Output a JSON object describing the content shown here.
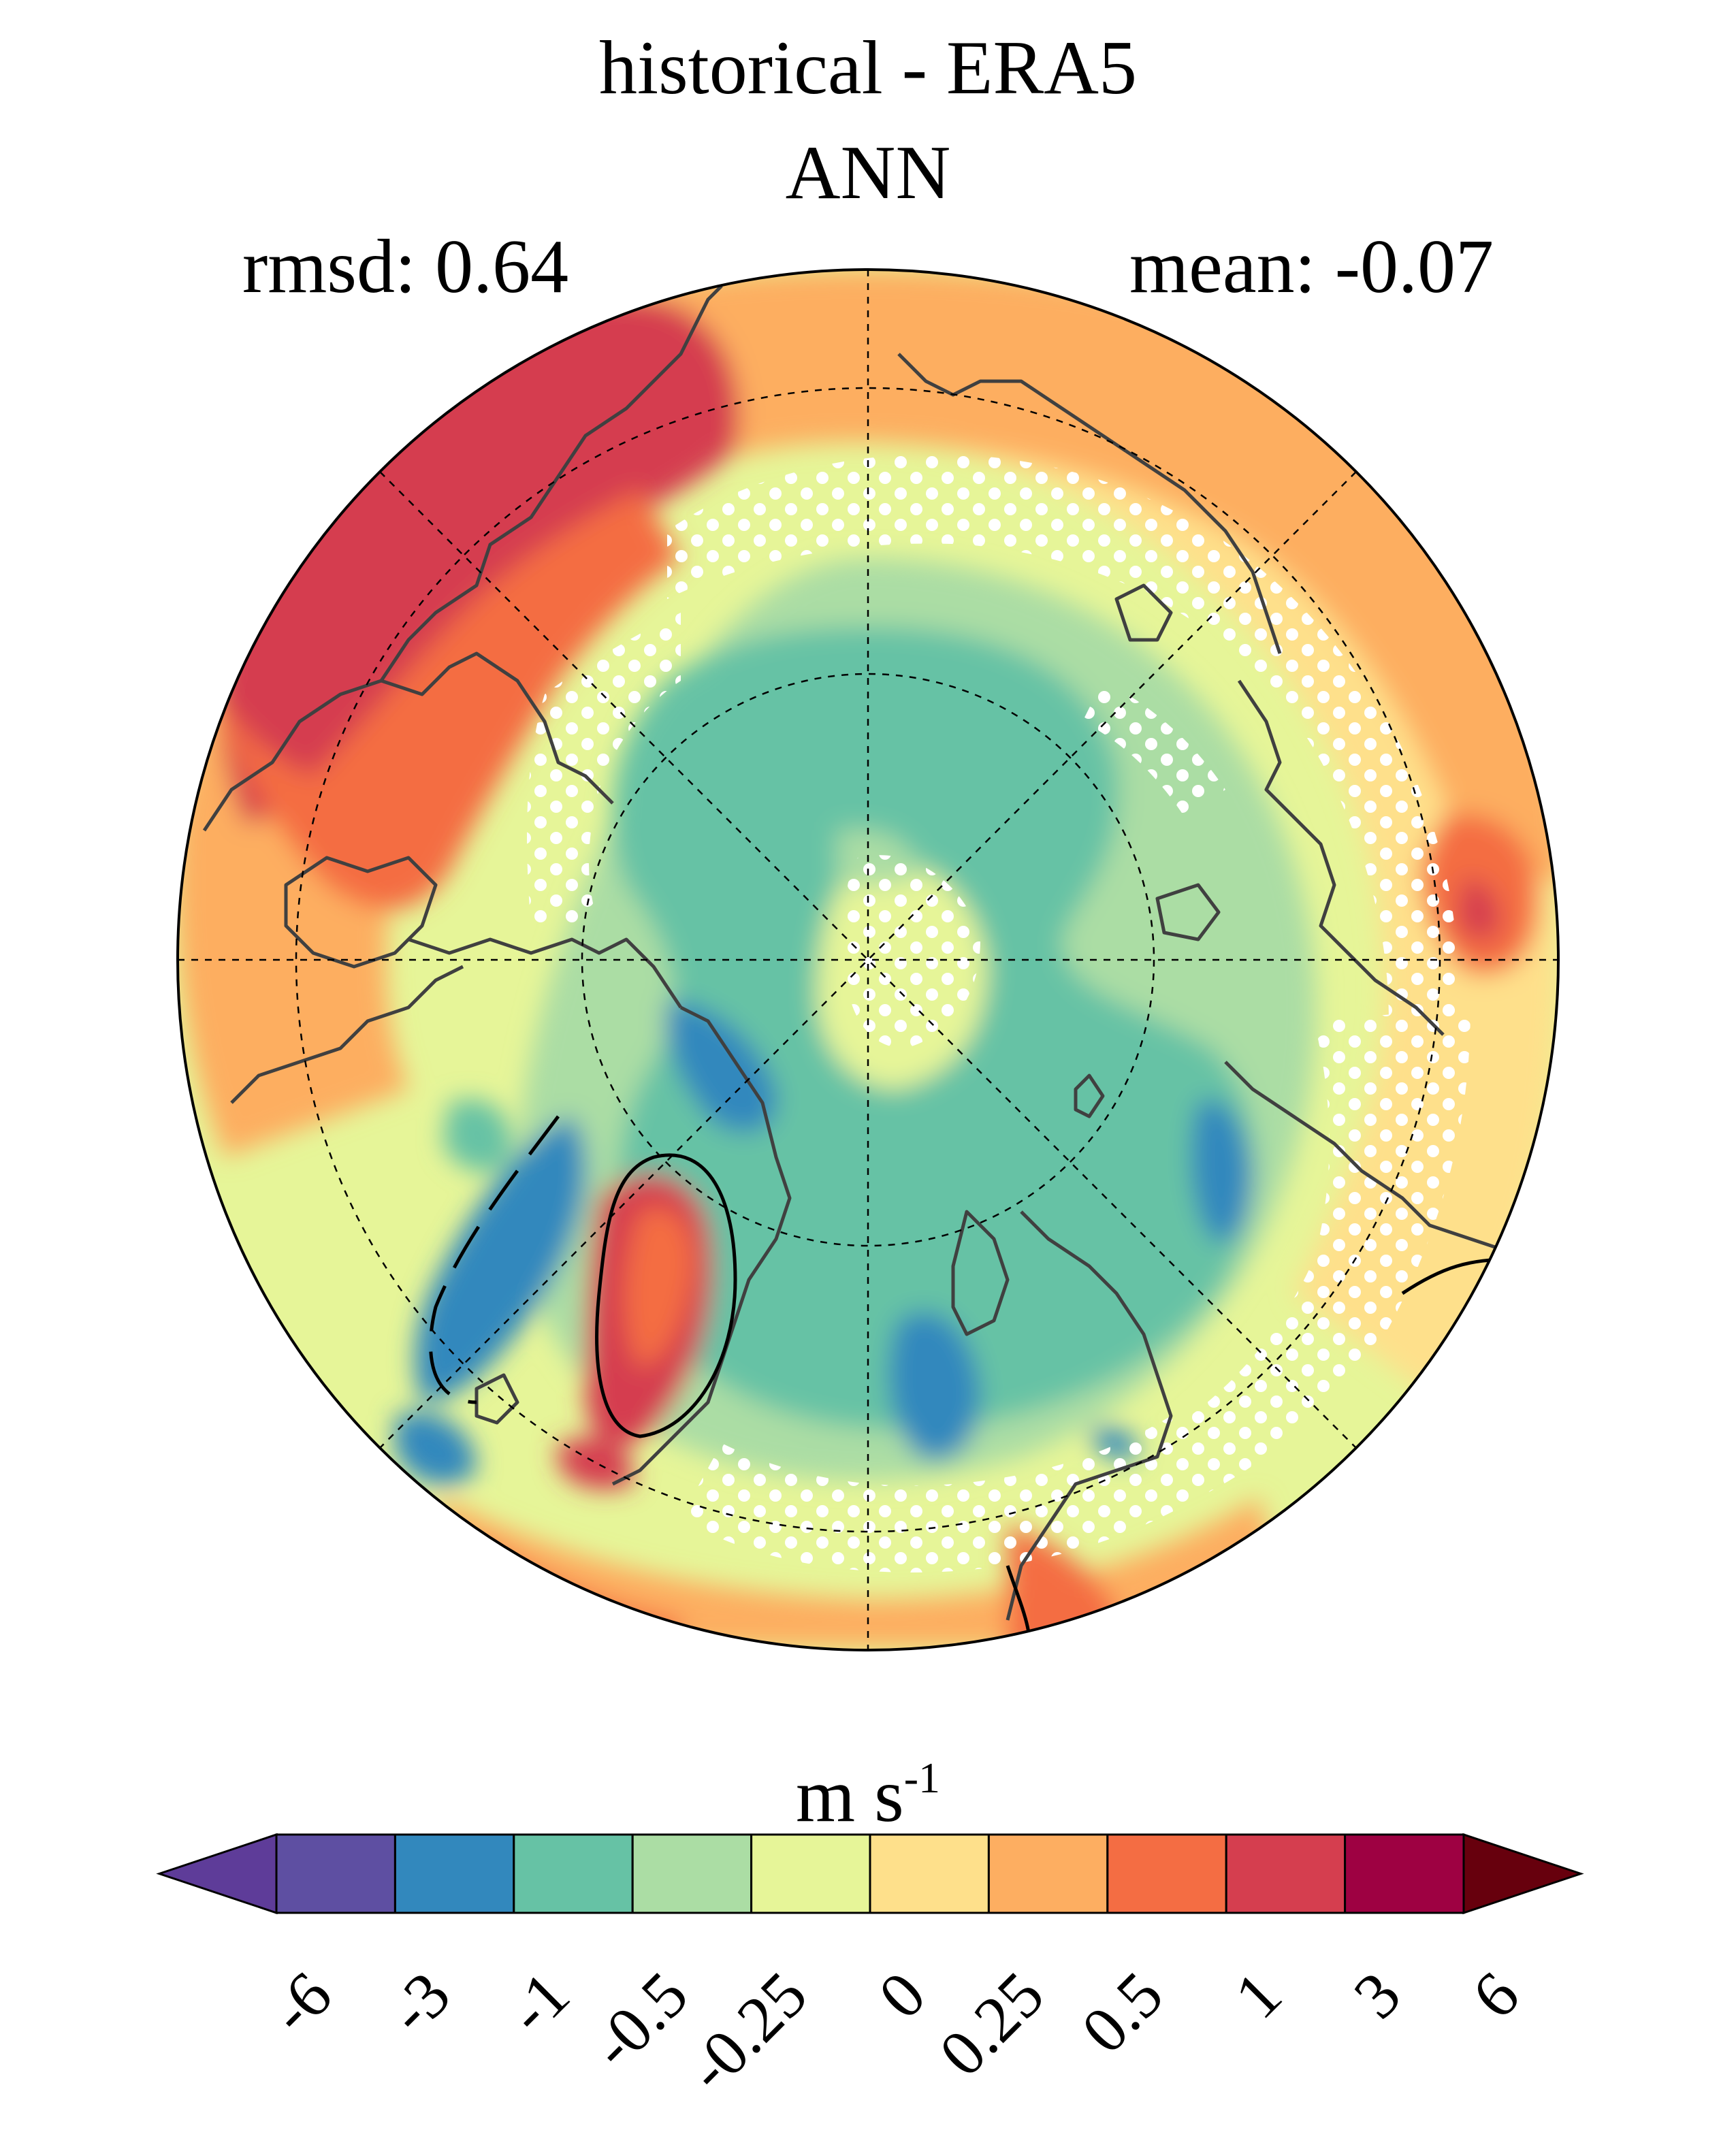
{
  "title": {
    "main": "historical - ERA5",
    "sub": "ANN"
  },
  "stats": {
    "rmsd": "rmsd: 0.64",
    "mean": "mean: -0.07"
  },
  "projection": "north-polar-stereographic",
  "field": "annual mean wind-speed difference (historical minus ERA5)",
  "colorbar": {
    "units_base": "m s",
    "units_exp": "-1",
    "levels": [
      "-6",
      "-3",
      "-1",
      "-0.5",
      "-0.25",
      "0",
      "0.25",
      "0.5",
      "1",
      "3",
      "6"
    ],
    "colors": [
      "#5e4fa2",
      "#3288bd",
      "#66c2a5",
      "#abdda4",
      "#e6f598",
      "#fee08b",
      "#fdae61",
      "#f46d43",
      "#d53e4f",
      "#9e0142"
    ],
    "under_color": "#5e3c99",
    "over_color": "#67000d"
  },
  "palette": {
    "strong_negative": "#3288bd",
    "negative": "#66c2a5",
    "weak_negative": "#abdda4",
    "near_zero_neg": "#e6f598",
    "near_zero_pos": "#fee08b",
    "weak_positive": "#fdae61",
    "positive": "#f46d43",
    "strong_positive": "#d53e4f",
    "coastline": "#404040",
    "stipple": "#ffffff"
  }
}
